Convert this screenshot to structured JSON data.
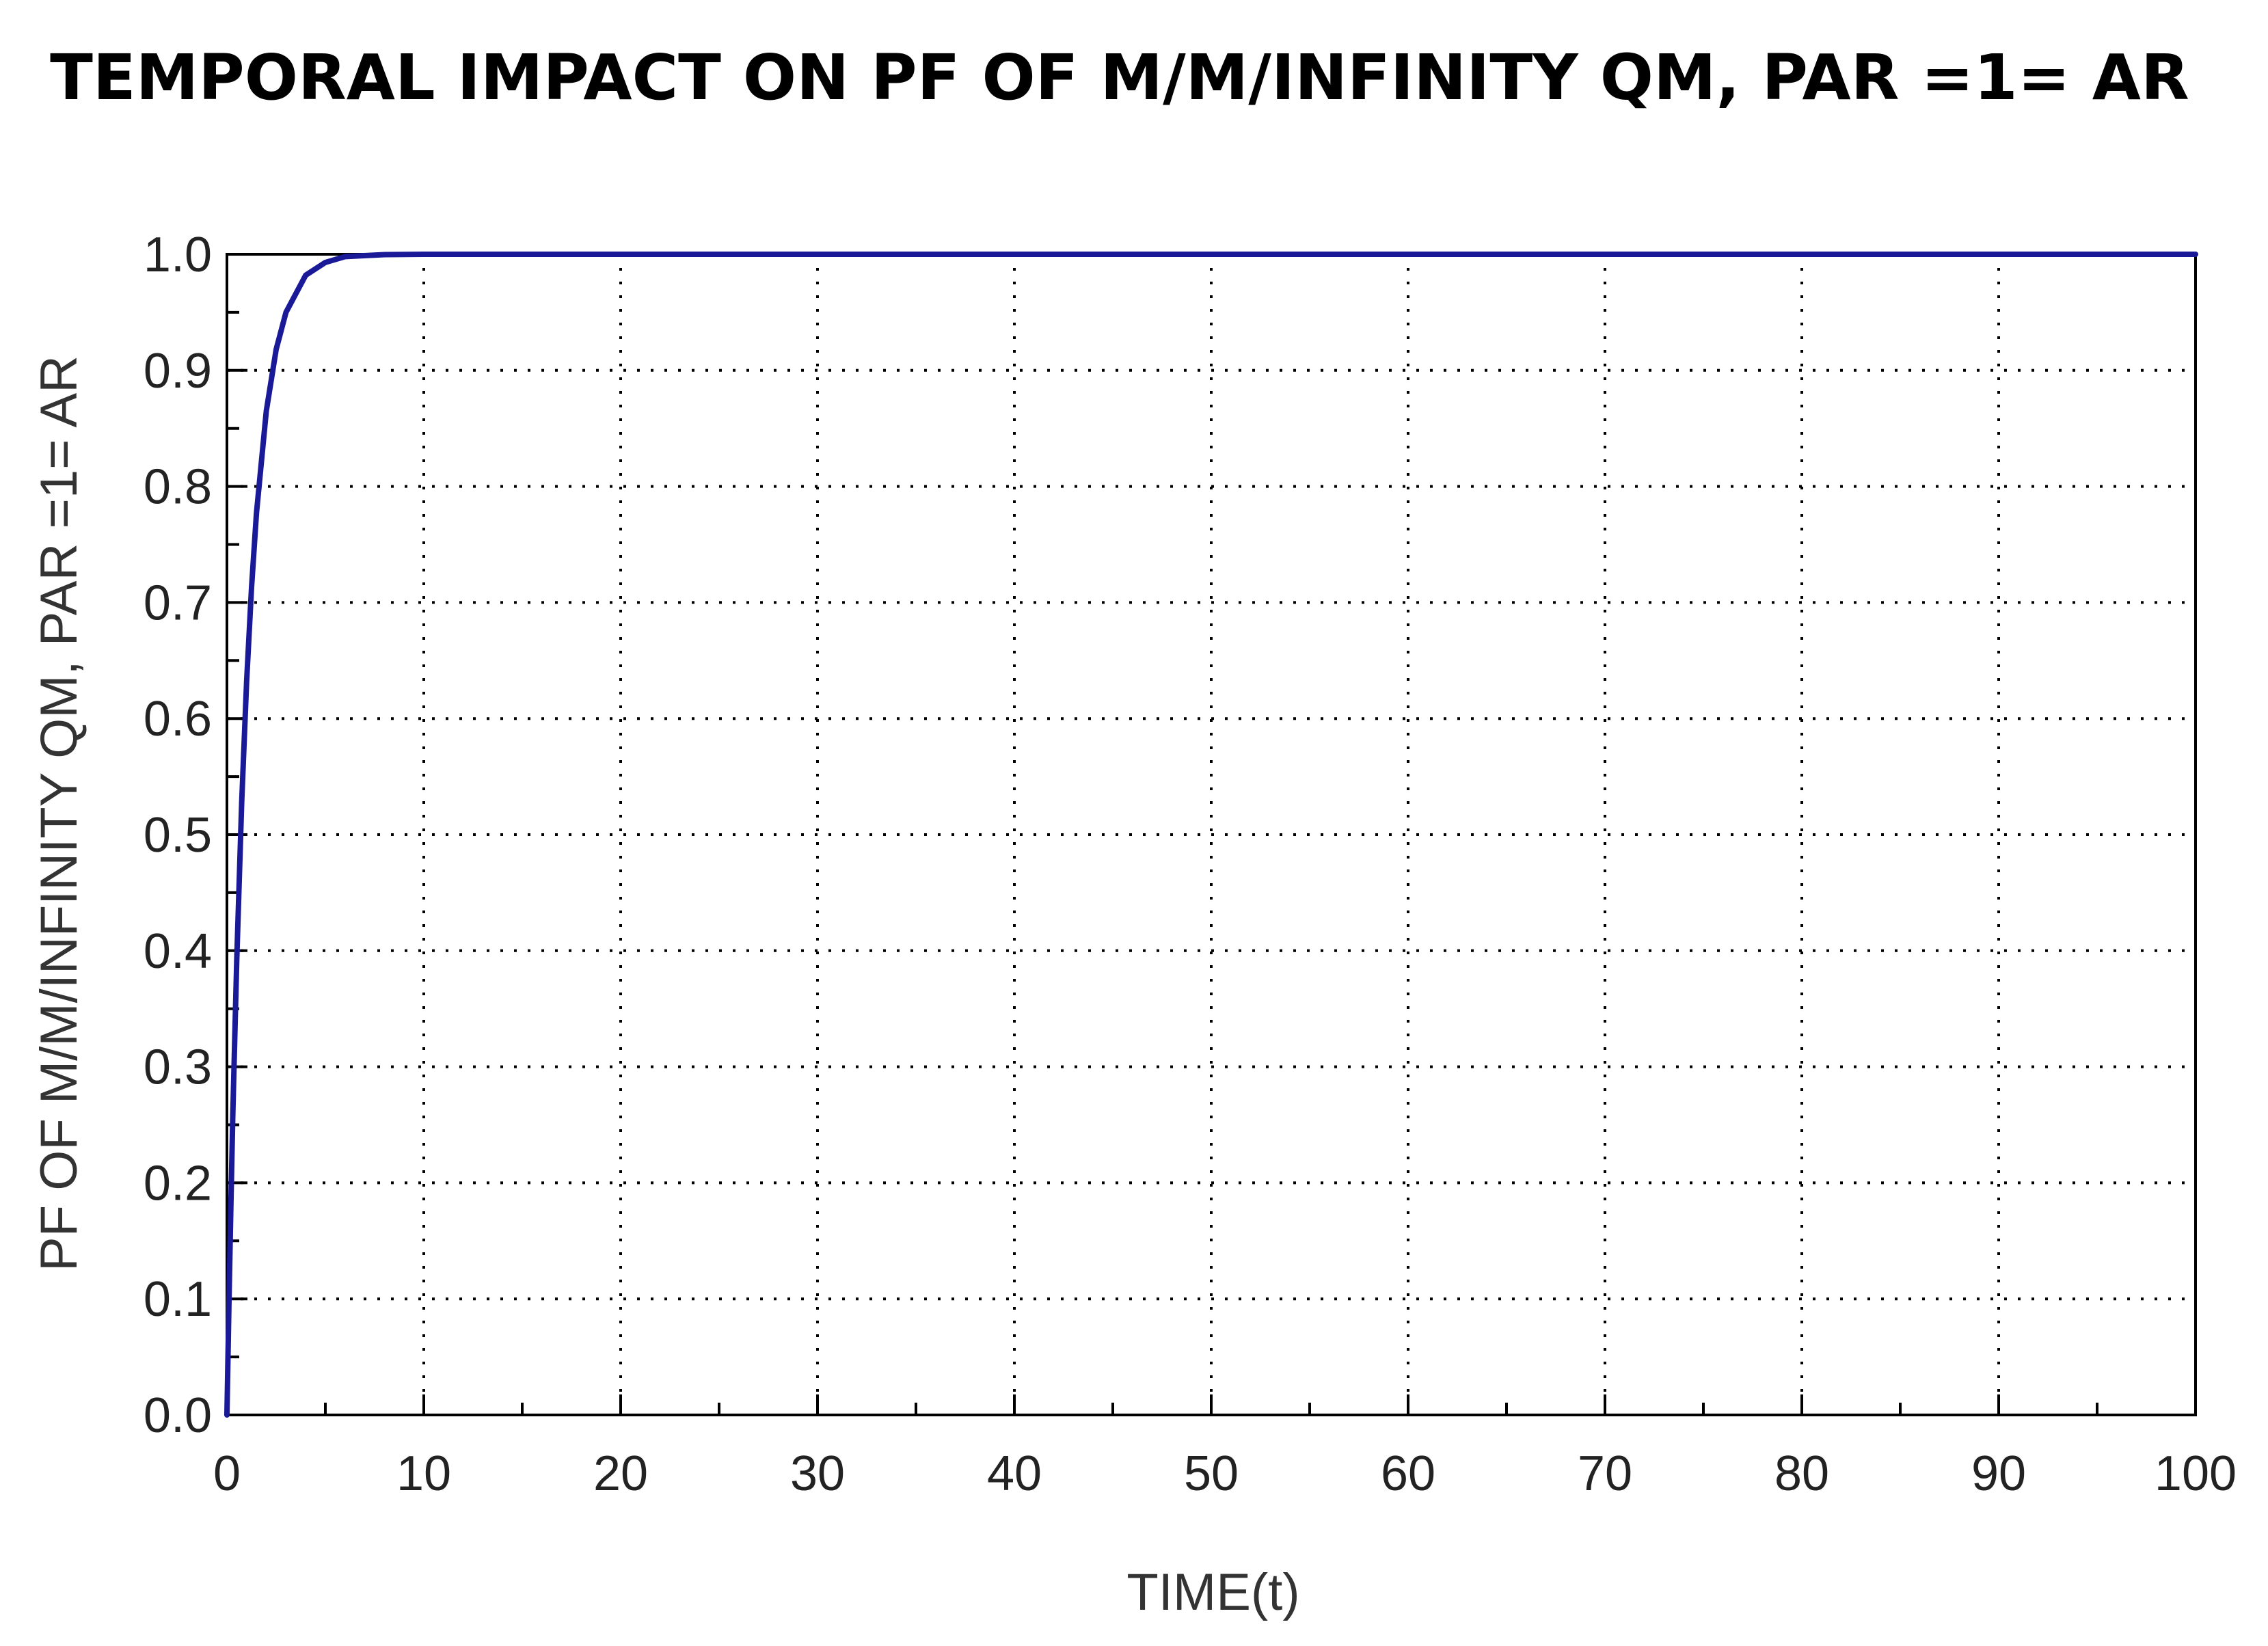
{
  "chart_data": {
    "type": "line",
    "title": "TEMPORAL IMPACT ON PF OF M/M/INFINITY QM, PAR =1= AR",
    "xlabel": "TIME(t)",
    "ylabel": "PF OF M/M/INFINITY QM, PAR =1= AR",
    "xlim": [
      0,
      100
    ],
    "ylim": [
      0,
      1
    ],
    "x_ticks": [
      0,
      10,
      20,
      30,
      40,
      50,
      60,
      70,
      80,
      90,
      100
    ],
    "x_tick_labels": [
      "0",
      "10",
      "20",
      "30",
      "40",
      "50",
      "60",
      "70",
      "80",
      "90",
      "100"
    ],
    "y_ticks": [
      0,
      0.1,
      0.2,
      0.3,
      0.4,
      0.5,
      0.6,
      0.7,
      0.8,
      0.9,
      1.0
    ],
    "y_tick_labels": [
      "0.0",
      "0.1",
      "0.2",
      "0.3",
      "0.4",
      "0.5",
      "0.6",
      "0.7",
      "0.8",
      "0.9",
      "1.0"
    ],
    "grid": true,
    "legend": "none",
    "line_color": "#1a1a99",
    "series": [
      {
        "x": [
          0,
          0.1,
          0.2,
          0.3,
          0.5,
          0.75,
          1,
          1.25,
          1.5,
          2,
          2.5,
          3,
          4,
          5,
          6,
          8,
          10,
          20,
          40,
          60,
          80,
          100
        ],
        "values": [
          0,
          0.095,
          0.181,
          0.259,
          0.393,
          0.528,
          0.632,
          0.713,
          0.777,
          0.865,
          0.918,
          0.95,
          0.982,
          0.993,
          0.998,
          0.9997,
          1.0,
          1.0,
          1.0,
          1.0,
          1.0,
          1.0
        ]
      }
    ]
  }
}
